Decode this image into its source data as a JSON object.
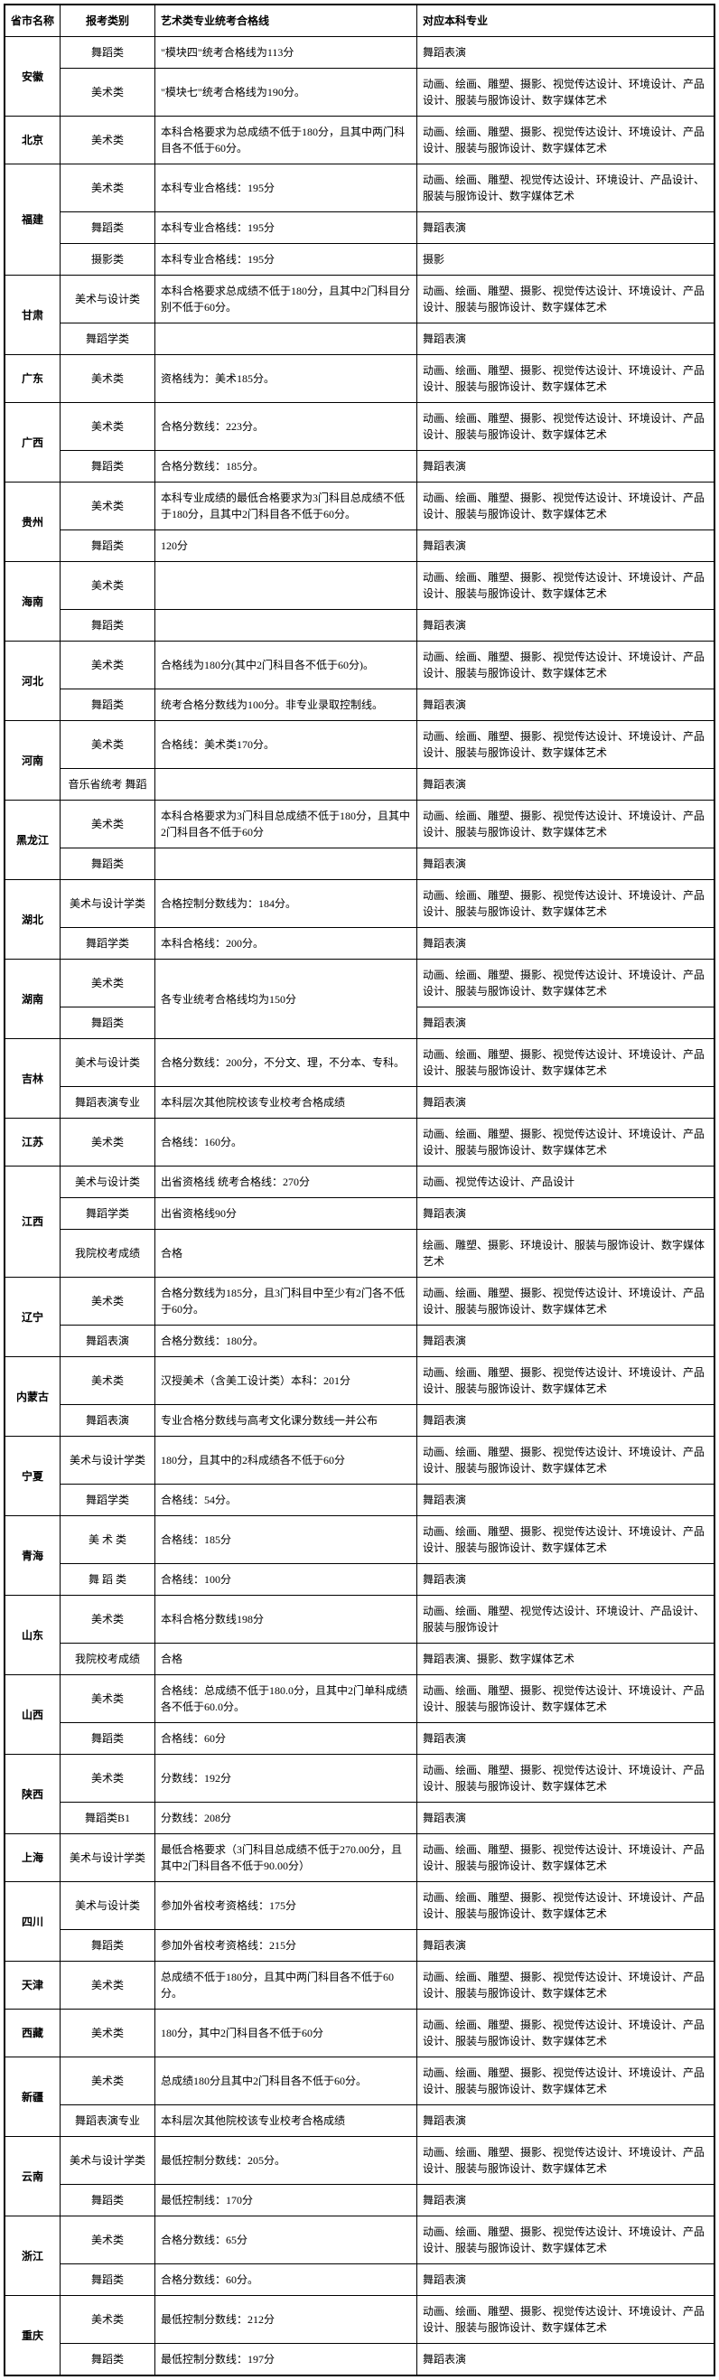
{
  "headers": [
    "省市名称",
    "报考类别",
    "艺术类专业统考合格线",
    "对应本科专业"
  ],
  "major_long": "动画、绘画、雕塑、摄影、视觉传达设计、环境设计、产品设计、服装与服饰设计、数字媒体艺术",
  "major_dance": "舞蹈表演",
  "rows": [
    {
      "prov": "安徽",
      "span": 2,
      "cat": "舞蹈类",
      "line": "\"模块四\"统考合格线为113分",
      "major": "舞蹈表演"
    },
    {
      "cat": "美术类",
      "line": "\"模块七\"统考合格线为190分。",
      "major": "动画、绘画、雕塑、摄影、视觉传达设计、环境设计、产品设计、服装与服饰设计、数字媒体艺术"
    },
    {
      "prov": "北京",
      "span": 1,
      "cat": "美术类",
      "line": "本科合格要求为总成绩不低于180分，且其中两门科目各不低于60分。",
      "major": "动画、绘画、雕塑、摄影、视觉传达设计、环境设计、产品设计、服装与服饰设计、数字媒体艺术"
    },
    {
      "prov": "福建",
      "span": 3,
      "cat": "美术类",
      "line": "本科专业合格线：195分",
      "major": "动画、绘画、雕塑、视觉传达设计、环境设计、产品设计、服装与服饰设计、数字媒体艺术"
    },
    {
      "cat": "舞蹈类",
      "line": "本科专业合格线：195分",
      "major": "舞蹈表演"
    },
    {
      "cat": "摄影类",
      "line": "本科专业合格线：195分",
      "major": "摄影"
    },
    {
      "prov": "甘肃",
      "span": 2,
      "cat": "美术与设计类",
      "line": "本科合格要求总成绩不低于180分，且其中2门科目分别不低于60分。",
      "major": "动画、绘画、雕塑、摄影、视觉传达设计、环境设计、产品设计、服装与服饰设计、数字媒体艺术"
    },
    {
      "cat": "舞蹈学类",
      "line": "",
      "major": "舞蹈表演"
    },
    {
      "prov": "广东",
      "span": 1,
      "cat": "美术类",
      "line": "资格线为：美术185分。",
      "major": "动画、绘画、雕塑、摄影、视觉传达设计、环境设计、产品设计、服装与服饰设计、数字媒体艺术"
    },
    {
      "prov": "广西",
      "span": 2,
      "cat": "美术类",
      "line": "合格分数线：223分。",
      "major": "动画、绘画、雕塑、摄影、视觉传达设计、环境设计、产品设计、服装与服饰设计、数字媒体艺术"
    },
    {
      "cat": "舞蹈类",
      "line": "合格分数线：185分。",
      "major": "舞蹈表演"
    },
    {
      "prov": "贵州",
      "span": 2,
      "cat": "美术类",
      "line": "本科专业成绩的最低合格要求为3门科目总成绩不低于180分，且其中2门科目各不低于60分。",
      "major": "动画、绘画、雕塑、摄影、视觉传达设计、环境设计、产品设计、服装与服饰设计、数字媒体艺术"
    },
    {
      "cat": "舞蹈类",
      "line": "120分",
      "major": "舞蹈表演"
    },
    {
      "prov": "海南",
      "span": 2,
      "cat": "美术类",
      "line": "",
      "major": "动画、绘画、雕塑、摄影、视觉传达设计、环境设计、产品设计、服装与服饰设计、数字媒体艺术"
    },
    {
      "cat": "舞蹈类",
      "line": "",
      "major": "舞蹈表演"
    },
    {
      "prov": "河北",
      "span": 2,
      "cat": "美术类",
      "line": "合格线为180分(其中2门科目各不低于60分)。",
      "major": "动画、绘画、雕塑、摄影、视觉传达设计、环境设计、产品设计、服装与服饰设计、数字媒体艺术"
    },
    {
      "cat": "舞蹈类",
      "line": "统考合格分数线为100分。非专业录取控制线。",
      "major": "舞蹈表演"
    },
    {
      "prov": "河南",
      "span": 2,
      "cat": "美术类",
      "line": "合格线：美术类170分。",
      "major": "动画、绘画、雕塑、摄影、视觉传达设计、环境设计、产品设计、服装与服饰设计、数字媒体艺术"
    },
    {
      "cat": "音乐省统考 舞蹈",
      "line": "",
      "major": "舞蹈表演"
    },
    {
      "prov": "黑龙江",
      "span": 2,
      "cat": "美术类",
      "line": "本科合格要求为3门科目总成绩不低于180分，且其中2门科目各不低于60分",
      "major": "动画、绘画、雕塑、摄影、视觉传达设计、环境设计、产品设计、服装与服饰设计、数字媒体艺术"
    },
    {
      "cat": "舞蹈类",
      "line": "",
      "major": "舞蹈表演"
    },
    {
      "prov": "湖北",
      "span": 2,
      "cat": "美术与设计学类",
      "line": "合格控制分数线为：184分。",
      "major": "动画、绘画、雕塑、摄影、视觉传达设计、环境设计、产品设计、服装与服饰设计、数字媒体艺术"
    },
    {
      "cat": "舞蹈学类",
      "line": "本科合格线：200分。",
      "major": "舞蹈表演"
    },
    {
      "prov": "湖南",
      "span": 2,
      "cat": "美术类",
      "line_span": 2,
      "line": "各专业统考合格线均为150分",
      "major": "动画、绘画、雕塑、摄影、视觉传达设计、环境设计、产品设计、服装与服饰设计、数字媒体艺术"
    },
    {
      "cat": "舞蹈类",
      "major": "舞蹈表演"
    },
    {
      "prov": "吉林",
      "span": 2,
      "cat": "美术与设计类",
      "line": "合格分数线：200分，不分文、理，不分本、专科。",
      "major": "动画、绘画、雕塑、摄影、视觉传达设计、环境设计、产品设计、服装与服饰设计、数字媒体艺术"
    },
    {
      "cat": "舞蹈表演专业",
      "line": "本科层次其他院校该专业校考合格成绩",
      "major": "舞蹈表演"
    },
    {
      "prov": "江苏",
      "span": 1,
      "cat": "美术类",
      "line": "合格线：160分。",
      "major": "动画、绘画、雕塑、摄影、视觉传达设计、环境设计、产品设计、服装与服饰设计、数字媒体艺术"
    },
    {
      "prov": "江西",
      "span": 3,
      "cat": "美术与设计类",
      "line": "出省资格线 统考合格线：270分",
      "major": "动画、视觉传达设计、产品设计"
    },
    {
      "cat": "舞蹈学类",
      "line": "出省资格线90分",
      "major": "舞蹈表演"
    },
    {
      "cat": "我院校考成绩",
      "line": "合格",
      "major": "绘画、雕塑、摄影、环境设计、服装与服饰设计、数字媒体艺术"
    },
    {
      "prov": "辽宁",
      "span": 2,
      "cat": "美术类",
      "line": "合格分数线为185分，且3门科目中至少有2门各不低于60分。",
      "major": "动画、绘画、雕塑、摄影、视觉传达设计、环境设计、产品设计、服装与服饰设计、数字媒体艺术"
    },
    {
      "cat": "舞蹈表演",
      "line": "合格分数线：180分。",
      "major": "舞蹈表演"
    },
    {
      "prov": "内蒙古",
      "span": 2,
      "cat": "美术类",
      "line": "汉授美术（含美工设计类）本科：201分",
      "major": "动画、绘画、雕塑、摄影、视觉传达设计、环境设计、产品设计、服装与服饰设计、数字媒体艺术"
    },
    {
      "cat": "舞蹈表演",
      "line": "专业合格分数线与高考文化课分数线一并公布",
      "major": "舞蹈表演"
    },
    {
      "prov": "宁夏",
      "span": 2,
      "cat": "美术与设计学类",
      "line": "180分，且其中的2科成绩各不低于60分",
      "major": "动画、绘画、雕塑、摄影、视觉传达设计、环境设计、产品设计、服装与服饰设计、数字媒体艺术"
    },
    {
      "cat": "舞蹈学类",
      "line": "合格线：54分。",
      "major": "舞蹈表演"
    },
    {
      "prov": "青海",
      "span": 2,
      "cat": "美 术 类",
      "line": "合格线：185分",
      "major": "动画、绘画、雕塑、摄影、视觉传达设计、环境设计、产品设计、服装与服饰设计、数字媒体艺术"
    },
    {
      "cat": "舞 蹈 类",
      "line": "合格线：100分",
      "major": "舞蹈表演"
    },
    {
      "prov": "山东",
      "span": 2,
      "cat": "美术类",
      "line": "本科合格分数线198分",
      "major": "动画、绘画、雕塑、视觉传达设计、环境设计、产品设计、服装与服饰设计"
    },
    {
      "cat": "我院校考成绩",
      "line": "合格",
      "major": "舞蹈表演、摄影、数字媒体艺术"
    },
    {
      "prov": "山西",
      "span": 2,
      "cat": "美术类",
      "line": "合格线：总成绩不低于180.0分，且其中2门单科成绩各不低于60.0分。",
      "major": "动画、绘画、雕塑、摄影、视觉传达设计、环境设计、产品设计、服装与服饰设计、数字媒体艺术"
    },
    {
      "cat": "舞蹈类",
      "line": "合格线：60分",
      "major": "舞蹈表演"
    },
    {
      "prov": "陕西",
      "span": 2,
      "cat": "美术类",
      "line": "分数线：192分",
      "major": "动画、绘画、雕塑、摄影、视觉传达设计、环境设计、产品设计、服装与服饰设计、数字媒体艺术"
    },
    {
      "cat": "舞蹈类B1",
      "line": "分数线：208分",
      "major": "舞蹈表演"
    },
    {
      "prov": "上海",
      "span": 1,
      "cat": "美术与设计学类",
      "line": "最低合格要求（3门科目总成绩不低于270.00分，且其中2门科目各不低于90.00分）",
      "major": "动画、绘画、雕塑、摄影、视觉传达设计、环境设计、产品设计、服装与服饰设计、数字媒体艺术"
    },
    {
      "prov": "四川",
      "span": 2,
      "cat": "美术与设计类",
      "line": "参加外省校考资格线：175分",
      "major": "动画、绘画、雕塑、摄影、视觉传达设计、环境设计、产品设计、服装与服饰设计、数字媒体艺术"
    },
    {
      "cat": "舞蹈类",
      "line": "参加外省校考资格线：215分",
      "major": "舞蹈表演"
    },
    {
      "prov": "天津",
      "span": 1,
      "cat": "美术类",
      "line": "总成绩不低于180分，且其中两门科目各不低于60分。",
      "major": "动画、绘画、雕塑、摄影、视觉传达设计、环境设计、产品设计、服装与服饰设计、数字媒体艺术"
    },
    {
      "prov": "西藏",
      "span": 1,
      "cat": "美术类",
      "line": "180分，其中2门科目各不低于60分",
      "major": "动画、绘画、雕塑、摄影、视觉传达设计、环境设计、产品设计、服装与服饰设计、数字媒体艺术"
    },
    {
      "prov": "新疆",
      "span": 2,
      "cat": "美术类",
      "line": "总成绩180分且其中2门科目各不低于60分。",
      "major": "动画、绘画、雕塑、摄影、视觉传达设计、环境设计、产品设计、服装与服饰设计、数字媒体艺术"
    },
    {
      "cat": "舞蹈表演专业",
      "line": "本科层次其他院校该专业校考合格成绩",
      "major": "舞蹈表演"
    },
    {
      "prov": "云南",
      "span": 2,
      "cat": "美术与设计学类",
      "line": "最低控制分数线：205分。",
      "major": "动画、绘画、雕塑、摄影、视觉传达设计、环境设计、产品设计、服装与服饰设计、数字媒体艺术"
    },
    {
      "cat": "舞蹈类",
      "line": "最低控制线：170分",
      "major": "舞蹈表演"
    },
    {
      "prov": "浙江",
      "span": 2,
      "cat": "美术类",
      "line": "合格分数线：65分",
      "major": "动画、绘画、雕塑、摄影、视觉传达设计、环境设计、产品设计、服装与服饰设计、数字媒体艺术"
    },
    {
      "cat": "舞蹈类",
      "line": "合格分数线：60分。",
      "major": "舞蹈表演"
    },
    {
      "prov": "重庆",
      "span": 2,
      "cat": "美术类",
      "line": "最低控制分数线：212分",
      "major": "动画、绘画、雕塑、摄影、视觉传达设计、环境设计、产品设计、服装与服饰设计、数字媒体艺术"
    },
    {
      "cat": "舞蹈类",
      "line": "最低控制分数线：197分",
      "major": "舞蹈表演"
    }
  ]
}
